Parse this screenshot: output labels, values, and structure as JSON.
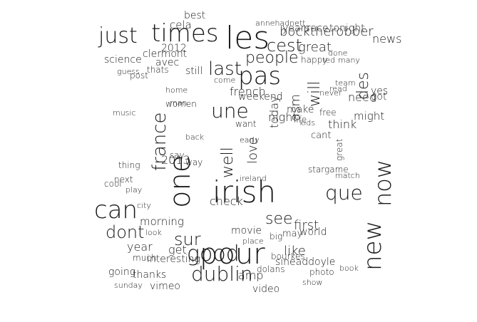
{
  "words": [
    "times",
    "les",
    "just",
    "pas",
    "irish",
    "pour",
    "good",
    "dublin",
    "one",
    "can",
    "new",
    "now",
    "france",
    "une",
    "last",
    "people",
    "cest",
    "will",
    "bocktherobber",
    "que",
    "dont",
    "sur",
    "well",
    "see",
    "love",
    "des",
    "years",
    "race",
    "tonight",
    "best",
    "cela",
    "science",
    "clermont",
    "avec",
    "still",
    "french",
    "today",
    "night",
    "asm",
    "great",
    "think",
    "might",
    "need",
    "got",
    "news",
    "yes",
    "2012",
    "2013",
    "check",
    "like",
    "first",
    "world",
    "year",
    "get",
    "morning",
    "movie",
    "going",
    "thanks",
    "vimeo",
    "interesting",
    "amp",
    "video",
    "sineaddoyle",
    "dolans",
    "bourkes",
    "photo",
    "say",
    "way",
    "make",
    "weekend",
    "want",
    "life",
    "free",
    "next",
    "cool",
    "thing",
    "music",
    "post",
    "thats",
    "guess",
    "annehadnett",
    "happy",
    "ted",
    "done",
    "many",
    "much",
    "sunday",
    "look",
    "may",
    "man",
    "great",
    "women",
    "come",
    "home",
    "city",
    "place",
    "play",
    "show",
    "book",
    "big",
    "cant",
    "team",
    "read",
    "never",
    "kids",
    "stargame",
    "back",
    "match",
    "early",
    "ireland"
  ]
}
